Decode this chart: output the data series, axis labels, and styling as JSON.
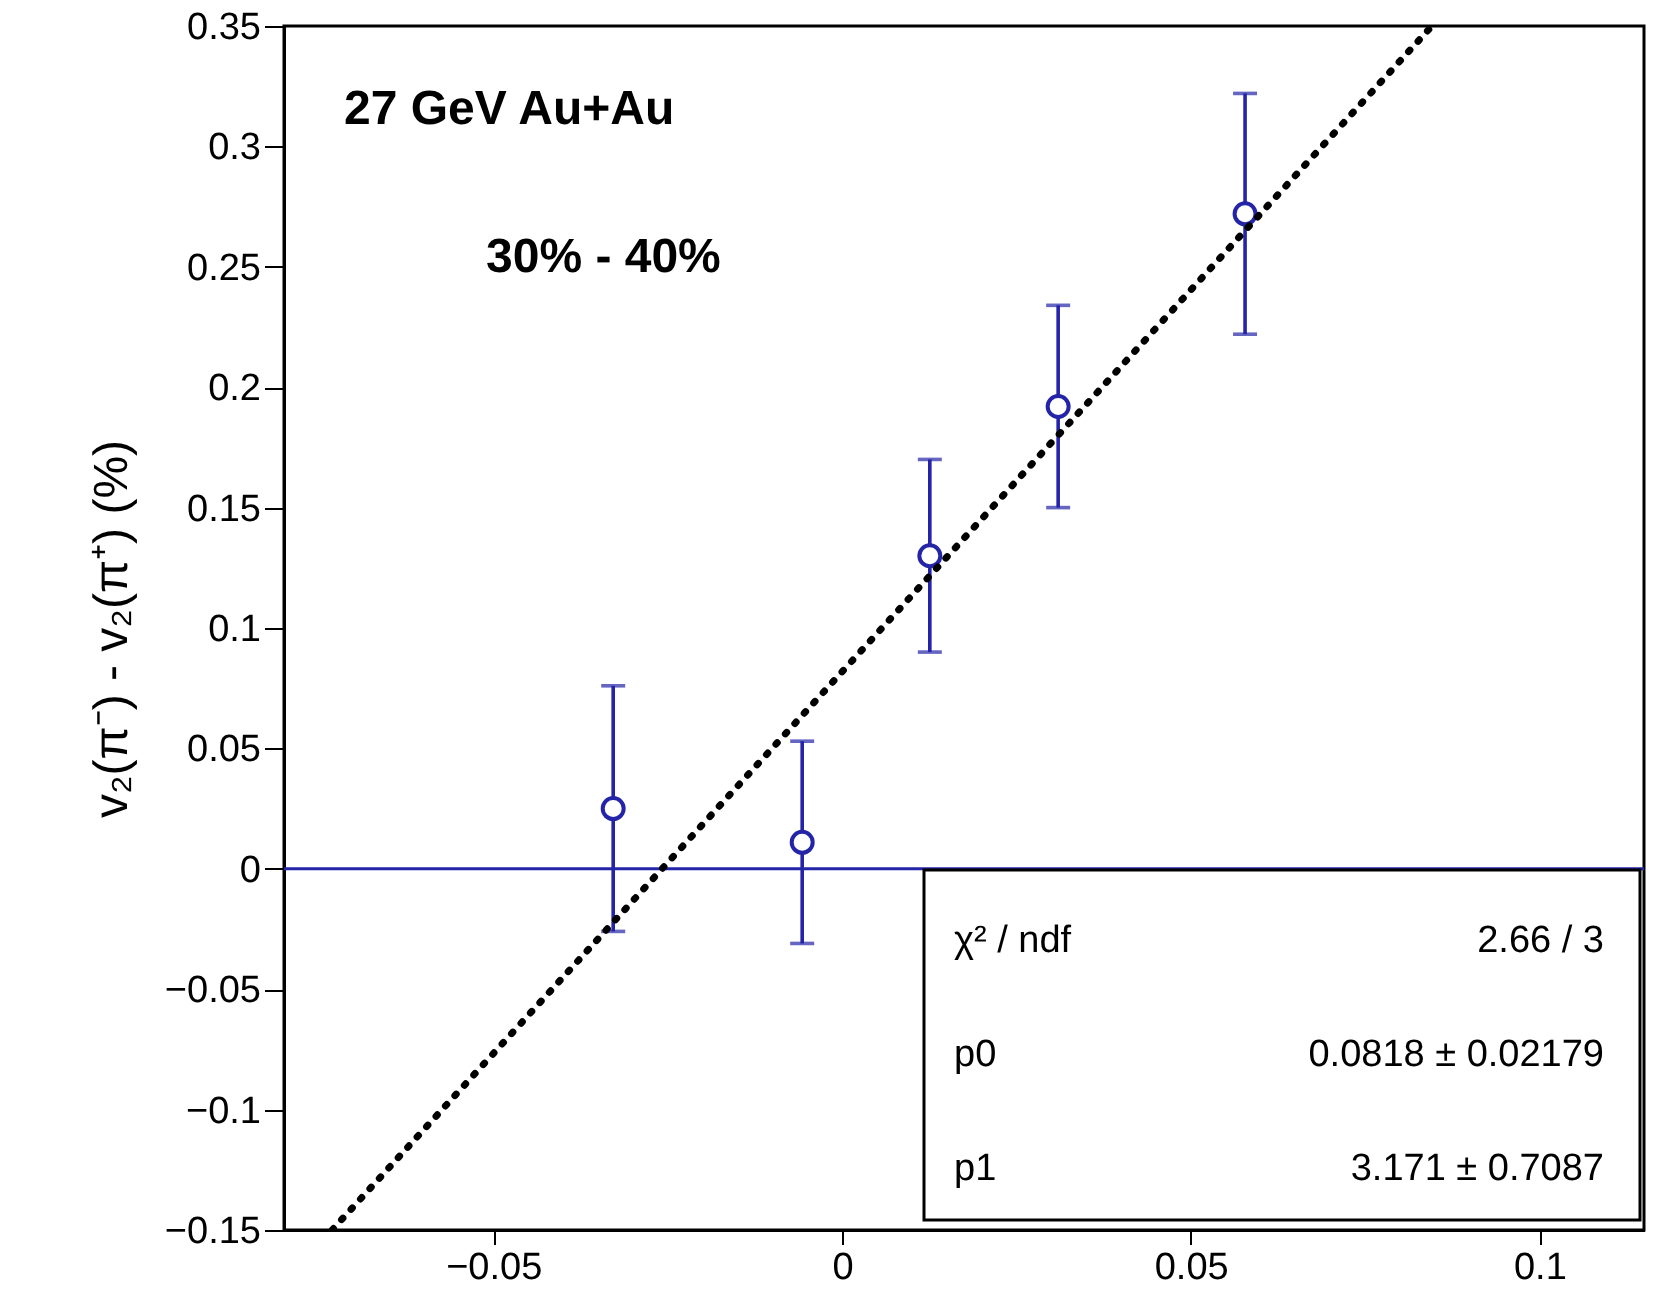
{
  "chart_data": {
    "type": "scatter",
    "ylabel": "v₂(π⁻) - v₂(π⁺) (%)",
    "xlim": [
      -0.08,
      0.115
    ],
    "xticks": [
      -0.05,
      0,
      0.05,
      0.1
    ],
    "ylim": [
      -0.15,
      0.35
    ],
    "yticks": [
      -0.15,
      -0.1,
      -0.05,
      0,
      0.05,
      0.1,
      0.15,
      0.2,
      0.25,
      0.3,
      0.35
    ],
    "grid": false,
    "series": [
      {
        "color": "#2424a8",
        "marker": "circle",
        "x": [
          -0.0328,
          -0.0057,
          0.0126,
          0.031,
          0.0578
        ],
        "values": [
          0.025,
          0.011,
          0.13,
          0.192,
          0.272
        ],
        "errors": [
          0.051,
          0.042,
          0.04,
          0.042,
          0.05
        ]
      },
      {
        "type": "line",
        "color": "#000000",
        "marker": "none",
        "line_style": "dotted",
        "x": [
          -0.0731,
          0.0846
        ],
        "values": [
          -0.15,
          0.35
        ]
      }
    ],
    "ref_lines": [
      {
        "axis": "y",
        "value": 0,
        "color": "#2424a8",
        "line_style": "solid"
      }
    ],
    "annotations": [
      "27 GeV Au+Au",
      "30% - 40%",
      "χ² / ndf",
      "2.66 / 3",
      "p0",
      "0.0818 ± 0.02179",
      "p1",
      "3.171 ± 0.7087"
    ]
  }
}
